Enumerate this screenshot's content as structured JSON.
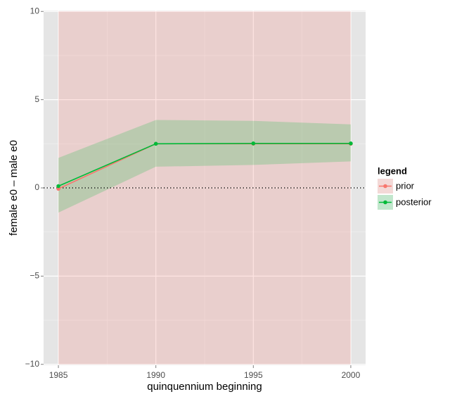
{
  "chart_data": {
    "type": "line",
    "x_label": "quinquennium beginning",
    "y_label": "female e0 – male e0",
    "x": [
      1985,
      1990,
      1995,
      2000
    ],
    "series": [
      {
        "name": "prior",
        "color": "#F8766D",
        "band_color": "#F8766D",
        "values": [
          -0.05,
          2.5,
          2.5,
          2.5
        ],
        "lower": [
          -10,
          -10,
          -10,
          -10
        ],
        "upper": [
          10,
          10,
          10,
          10
        ]
      },
      {
        "name": "posterior",
        "color": "#00BA38",
        "band_color": "#00BA38",
        "values": [
          0.1,
          2.5,
          2.52,
          2.52
        ],
        "lower": [
          -1.4,
          1.2,
          1.3,
          1.5
        ],
        "upper": [
          1.7,
          3.85,
          3.8,
          3.6
        ]
      }
    ],
    "xlim": [
      1984.24,
      2000.76
    ],
    "ylim": [
      -10.05,
      10.05
    ],
    "xticks": [
      1985,
      1990,
      1995,
      2000
    ],
    "yticks": [
      {
        "value": -10,
        "label": "−10"
      },
      {
        "value": -5,
        "label": "−5"
      },
      0,
      5,
      10
    ],
    "xminor": [
      1987.5,
      1992.5,
      1997.5
    ],
    "yminor": [
      -7.5,
      -2.5,
      2.5,
      7.5
    ],
    "hline": 0,
    "grid": true,
    "legend_title": "legend",
    "legend_position": "right"
  }
}
